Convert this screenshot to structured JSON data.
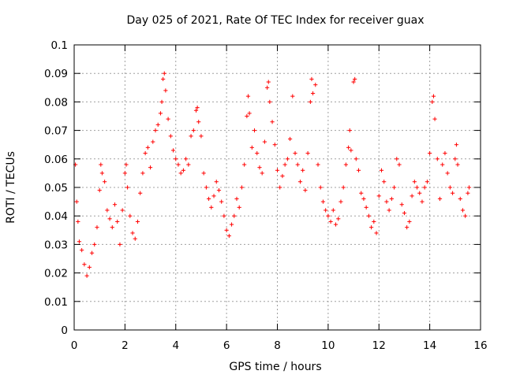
{
  "chart_data": {
    "type": "scatter",
    "title": "Day 025 of 2021, Rate Of TEC Index for receiver guax",
    "xlabel": "GPS time / hours",
    "ylabel": "ROTI / TECUs",
    "xlim": [
      0,
      16
    ],
    "ylim": [
      0,
      0.1
    ],
    "xticks": [
      0,
      2,
      4,
      6,
      8,
      10,
      12,
      14,
      16
    ],
    "xtick_labels": [
      "0",
      "2",
      "4",
      "6",
      "8",
      "10",
      "12",
      "14",
      "16"
    ],
    "yticks": [
      0,
      0.01,
      0.02,
      0.03,
      0.04,
      0.05,
      0.06,
      0.07,
      0.08,
      0.09,
      0.1
    ],
    "ytick_labels": [
      "0",
      "0.01",
      "0.02",
      "0.03",
      "0.04",
      "0.05",
      "0.06",
      "0.07",
      "0.08",
      "0.09",
      "0.1"
    ],
    "grid": true,
    "marker": "+",
    "color": "#ff0000",
    "series": [
      {
        "points": [
          [
            0.05,
            0.058
          ],
          [
            0.1,
            0.045
          ],
          [
            0.15,
            0.038
          ],
          [
            0.2,
            0.031
          ],
          [
            0.3,
            0.028
          ],
          [
            0.4,
            0.023
          ],
          [
            0.5,
            0.019
          ],
          [
            0.6,
            0.022
          ],
          [
            0.7,
            0.027
          ],
          [
            0.8,
            0.03
          ],
          [
            0.9,
            0.036
          ],
          [
            1.0,
            0.049
          ],
          [
            1.05,
            0.058
          ],
          [
            1.1,
            0.055
          ],
          [
            1.2,
            0.052
          ],
          [
            1.3,
            0.042
          ],
          [
            1.4,
            0.039
          ],
          [
            1.5,
            0.036
          ],
          [
            1.6,
            0.044
          ],
          [
            1.7,
            0.038
          ],
          [
            1.8,
            0.03
          ],
          [
            1.9,
            0.042
          ],
          [
            2.0,
            0.055
          ],
          [
            2.05,
            0.058
          ],
          [
            2.1,
            0.05
          ],
          [
            2.2,
            0.04
          ],
          [
            2.3,
            0.034
          ],
          [
            2.4,
            0.032
          ],
          [
            2.5,
            0.038
          ],
          [
            2.6,
            0.048
          ],
          [
            2.7,
            0.055
          ],
          [
            2.8,
            0.062
          ],
          [
            2.9,
            0.064
          ],
          [
            3.0,
            0.057
          ],
          [
            3.1,
            0.066
          ],
          [
            3.2,
            0.07
          ],
          [
            3.3,
            0.072
          ],
          [
            3.4,
            0.076
          ],
          [
            3.45,
            0.08
          ],
          [
            3.5,
            0.088
          ],
          [
            3.55,
            0.09
          ],
          [
            3.6,
            0.084
          ],
          [
            3.7,
            0.074
          ],
          [
            3.8,
            0.068
          ],
          [
            3.9,
            0.063
          ],
          [
            4.0,
            0.06
          ],
          [
            4.1,
            0.058
          ],
          [
            4.2,
            0.055
          ],
          [
            4.3,
            0.056
          ],
          [
            4.4,
            0.06
          ],
          [
            4.5,
            0.058
          ],
          [
            4.6,
            0.068
          ],
          [
            4.7,
            0.07
          ],
          [
            4.8,
            0.077
          ],
          [
            4.85,
            0.078
          ],
          [
            4.9,
            0.073
          ],
          [
            5.0,
            0.068
          ],
          [
            5.1,
            0.055
          ],
          [
            5.2,
            0.05
          ],
          [
            5.3,
            0.046
          ],
          [
            5.4,
            0.043
          ],
          [
            5.5,
            0.047
          ],
          [
            5.6,
            0.052
          ],
          [
            5.7,
            0.049
          ],
          [
            5.8,
            0.045
          ],
          [
            5.9,
            0.04
          ],
          [
            6.0,
            0.035
          ],
          [
            6.1,
            0.033
          ],
          [
            6.2,
            0.037
          ],
          [
            6.3,
            0.04
          ],
          [
            6.4,
            0.046
          ],
          [
            6.5,
            0.043
          ],
          [
            6.6,
            0.05
          ],
          [
            6.7,
            0.058
          ],
          [
            6.8,
            0.075
          ],
          [
            6.85,
            0.082
          ],
          [
            6.9,
            0.076
          ],
          [
            7.0,
            0.064
          ],
          [
            7.1,
            0.07
          ],
          [
            7.2,
            0.062
          ],
          [
            7.3,
            0.057
          ],
          [
            7.4,
            0.055
          ],
          [
            7.5,
            0.066
          ],
          [
            7.6,
            0.085
          ],
          [
            7.65,
            0.087
          ],
          [
            7.7,
            0.08
          ],
          [
            7.8,
            0.073
          ],
          [
            7.9,
            0.065
          ],
          [
            8.0,
            0.056
          ],
          [
            8.1,
            0.05
          ],
          [
            8.2,
            0.054
          ],
          [
            8.3,
            0.058
          ],
          [
            8.4,
            0.06
          ],
          [
            8.5,
            0.067
          ],
          [
            8.6,
            0.082
          ],
          [
            8.7,
            0.062
          ],
          [
            8.8,
            0.058
          ],
          [
            8.9,
            0.052
          ],
          [
            9.0,
            0.056
          ],
          [
            9.1,
            0.049
          ],
          [
            9.2,
            0.062
          ],
          [
            9.3,
            0.08
          ],
          [
            9.35,
            0.088
          ],
          [
            9.4,
            0.083
          ],
          [
            9.5,
            0.086
          ],
          [
            9.6,
            0.058
          ],
          [
            9.7,
            0.05
          ],
          [
            9.8,
            0.045
          ],
          [
            9.9,
            0.042
          ],
          [
            10.0,
            0.04
          ],
          [
            10.1,
            0.038
          ],
          [
            10.2,
            0.042
          ],
          [
            10.3,
            0.037
          ],
          [
            10.4,
            0.039
          ],
          [
            10.5,
            0.045
          ],
          [
            10.6,
            0.05
          ],
          [
            10.7,
            0.058
          ],
          [
            10.8,
            0.064
          ],
          [
            10.85,
            0.07
          ],
          [
            10.9,
            0.063
          ],
          [
            11.0,
            0.087
          ],
          [
            11.05,
            0.088
          ],
          [
            11.1,
            0.06
          ],
          [
            11.2,
            0.056
          ],
          [
            11.3,
            0.048
          ],
          [
            11.4,
            0.046
          ],
          [
            11.5,
            0.043
          ],
          [
            11.6,
            0.04
          ],
          [
            11.7,
            0.036
          ],
          [
            11.8,
            0.038
          ],
          [
            11.9,
            0.034
          ],
          [
            12.0,
            0.047
          ],
          [
            12.1,
            0.056
          ],
          [
            12.2,
            0.052
          ],
          [
            12.3,
            0.045
          ],
          [
            12.4,
            0.042
          ],
          [
            12.5,
            0.046
          ],
          [
            12.6,
            0.05
          ],
          [
            12.7,
            0.06
          ],
          [
            12.8,
            0.058
          ],
          [
            12.9,
            0.044
          ],
          [
            13.0,
            0.041
          ],
          [
            13.1,
            0.036
          ],
          [
            13.2,
            0.038
          ],
          [
            13.3,
            0.047
          ],
          [
            13.4,
            0.052
          ],
          [
            13.5,
            0.05
          ],
          [
            13.6,
            0.048
          ],
          [
            13.7,
            0.045
          ],
          [
            13.8,
            0.05
          ],
          [
            13.9,
            0.052
          ],
          [
            14.0,
            0.062
          ],
          [
            14.1,
            0.08
          ],
          [
            14.15,
            0.082
          ],
          [
            14.2,
            0.074
          ],
          [
            14.3,
            0.06
          ],
          [
            14.4,
            0.046
          ],
          [
            14.5,
            0.058
          ],
          [
            14.6,
            0.062
          ],
          [
            14.7,
            0.055
          ],
          [
            14.8,
            0.05
          ],
          [
            14.9,
            0.048
          ],
          [
            15.0,
            0.06
          ],
          [
            15.05,
            0.065
          ],
          [
            15.1,
            0.058
          ],
          [
            15.2,
            0.046
          ],
          [
            15.3,
            0.042
          ],
          [
            15.4,
            0.04
          ],
          [
            15.5,
            0.048
          ],
          [
            15.55,
            0.05
          ]
        ]
      }
    ]
  }
}
